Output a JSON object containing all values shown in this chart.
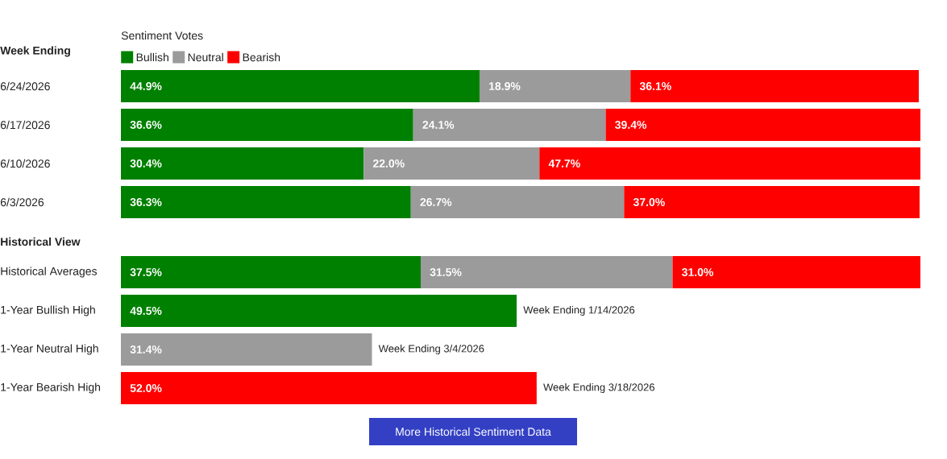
{
  "chart_data": [
    {
      "type": "bar",
      "orientation": "horizontal",
      "stacked": true,
      "legend_title": "Sentiment Votes",
      "ylabel": "Week Ending",
      "legend": "top left",
      "categories": [
        "6/24/2026",
        "6/17/2026",
        "6/10/2026",
        "6/3/2026"
      ],
      "series": [
        {
          "name": "Bullish",
          "color": "#008000",
          "values": [
            44.9,
            36.6,
            30.4,
            36.3
          ],
          "value_labels": [
            "44.9%",
            "36.6%",
            "30.4%",
            "36.3%"
          ]
        },
        {
          "name": "Neutral",
          "color": "#9b9b9b",
          "values": [
            18.9,
            24.1,
            22.0,
            26.7
          ],
          "value_labels": [
            "18.9%",
            "24.1%",
            "22.0%",
            "26.7%"
          ]
        },
        {
          "name": "Bearish",
          "color": "#ff0000",
          "values": [
            36.1,
            39.4,
            47.7,
            37.0
          ],
          "value_labels": [
            "36.1%",
            "39.4%",
            "47.7%",
            "37.0%"
          ]
        }
      ]
    },
    {
      "type": "bar",
      "orientation": "horizontal",
      "stacked": true,
      "ylabel": "Historical View",
      "categories": [
        "Historical Averages",
        "1-Year Bullish High",
        "1-Year Neutral High",
        "1-Year Bearish High"
      ],
      "series": [
        {
          "color": "#008000",
          "values": [
            37.5,
            49.5,
            null,
            null
          ],
          "value_labels": [
            "37.5%",
            "49.5%",
            null,
            null
          ]
        },
        {
          "color": "#9b9b9b",
          "values": [
            31.5,
            null,
            31.4,
            null
          ],
          "value_labels": [
            "31.5%",
            null,
            "31.4%",
            null
          ]
        },
        {
          "color": "#ff0000",
          "values": [
            31.0,
            null,
            null,
            52.0
          ],
          "value_labels": [
            "31.0%",
            null,
            null,
            "52.0%"
          ]
        }
      ],
      "annotations": [
        {
          "text": "Week Ending 1/14/2026",
          "x": 49.5,
          "y": "1-Year Bullish High"
        },
        {
          "text": "Week Ending 3/4/2026",
          "x": 31.4,
          "y": "1-Year Neutral High"
        },
        {
          "text": "Week Ending 3/18/2026",
          "x": 52.0,
          "y": "1-Year Bearish High"
        },
        "More Historical Sentiment Data"
      ]
    }
  ]
}
